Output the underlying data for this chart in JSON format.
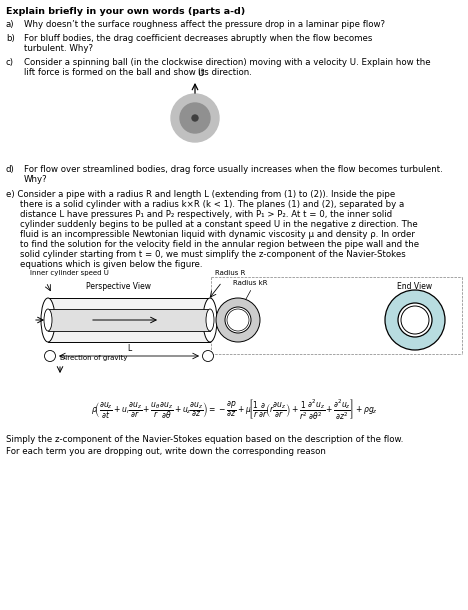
{
  "title": "Explain briefly in your own words (parts a-d)",
  "bg_color": "#ffffff",
  "text_color": "#000000",
  "fig_width": 4.68,
  "fig_height": 6.1,
  "dpi": 100,
  "label_inner": "Inner cylinder speed U",
  "label_perspective": "Perspective View",
  "label_radius_R": "Radius R",
  "label_radius_kR": "Radius kR",
  "label_end_view": "End View",
  "label_gravity": "Direction of gravity",
  "eq_bottom1": "Simply the z-component of the Navier-Stokes equation based on the description of the flow.",
  "eq_bottom2": "For each term you are dropping out, write down the corresponding reason"
}
